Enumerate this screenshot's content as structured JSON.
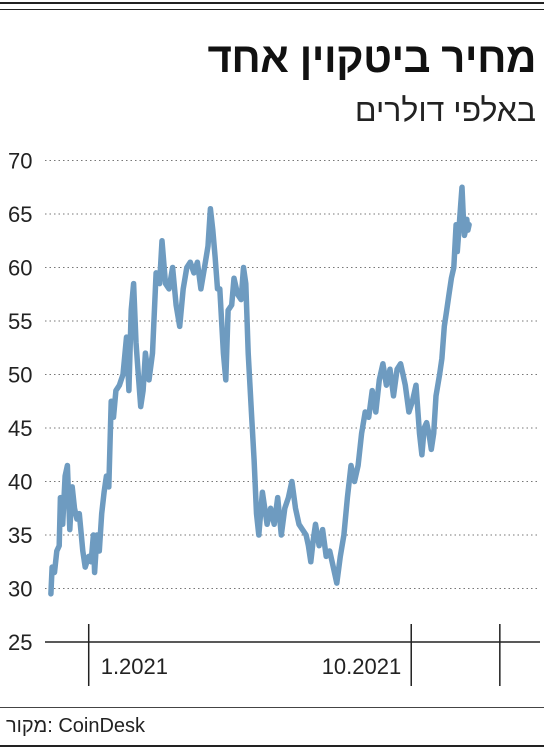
{
  "header": {
    "title": "מחיר ביטקוין אחד",
    "subtitle": "באלפי דולרים"
  },
  "footer": {
    "source_label": "מקור:",
    "source_name": "CoinDesk"
  },
  "chart_data": {
    "type": "line",
    "title": "מחיר ביטקוין אחד",
    "ylabel": "באלפי דולרים",
    "ylim": [
      25,
      70
    ],
    "yticks": [
      25,
      30,
      35,
      40,
      45,
      50,
      55,
      60,
      65,
      70
    ],
    "grid": true,
    "xlim": [
      "2020-11-25",
      "2022-01-18"
    ],
    "xticks": [
      {
        "label": "1.2021",
        "date": "2021-01-01"
      },
      {
        "label": "10.2021",
        "date": "2021-10-01"
      }
    ],
    "line_color": "#6e9bc0",
    "series": [
      {
        "name": "",
        "points": [
          [
            "2020-11-30",
            29.5
          ],
          [
            "2020-12-01",
            32
          ],
          [
            "2020-12-03",
            31.5
          ],
          [
            "2020-12-05",
            33.5
          ],
          [
            "2020-12-07",
            34
          ],
          [
            "2020-12-08",
            38.5
          ],
          [
            "2020-12-10",
            36
          ],
          [
            "2020-12-12",
            40.5
          ],
          [
            "2020-12-14",
            41.5
          ],
          [
            "2020-12-16",
            35.5
          ],
          [
            "2020-12-18",
            39.5
          ],
          [
            "2020-12-20",
            37.5
          ],
          [
            "2020-12-22",
            36.5
          ],
          [
            "2020-12-24",
            37
          ],
          [
            "2020-12-27",
            33.5
          ],
          [
            "2020-12-29",
            32
          ],
          [
            "2021-01-01",
            33
          ],
          [
            "2021-01-03",
            32.5
          ],
          [
            "2021-01-05",
            35
          ],
          [
            "2021-01-06",
            31.5
          ],
          [
            "2021-01-08",
            35
          ],
          [
            "2021-01-10",
            33.5
          ],
          [
            "2021-01-12",
            37
          ],
          [
            "2021-01-14",
            39
          ],
          [
            "2021-01-16",
            40.5
          ],
          [
            "2021-01-18",
            39.5
          ],
          [
            "2021-01-20",
            47.5
          ],
          [
            "2021-01-22",
            46
          ],
          [
            "2021-01-24",
            48.5
          ],
          [
            "2021-01-27",
            49
          ],
          [
            "2021-01-30",
            50
          ],
          [
            "2021-02-02",
            53.5
          ],
          [
            "2021-02-04",
            48.5
          ],
          [
            "2021-02-06",
            56
          ],
          [
            "2021-02-08",
            58.5
          ],
          [
            "2021-02-10",
            53
          ],
          [
            "2021-02-12",
            50
          ],
          [
            "2021-02-14",
            47
          ],
          [
            "2021-02-16",
            48.5
          ],
          [
            "2021-02-18",
            52
          ],
          [
            "2021-02-21",
            49.5
          ],
          [
            "2021-02-24",
            52
          ],
          [
            "2021-02-27",
            59.5
          ],
          [
            "2021-03-02",
            58.5
          ],
          [
            "2021-03-04",
            62.5
          ],
          [
            "2021-03-07",
            58.5
          ],
          [
            "2021-03-10",
            58
          ],
          [
            "2021-03-13",
            60
          ],
          [
            "2021-03-16",
            56.5
          ],
          [
            "2021-03-19",
            54.5
          ],
          [
            "2021-03-22",
            58
          ],
          [
            "2021-03-25",
            60
          ],
          [
            "2021-03-28",
            60.5
          ],
          [
            "2021-03-31",
            59.5
          ],
          [
            "2021-04-03",
            60.5
          ],
          [
            "2021-04-06",
            58
          ],
          [
            "2021-04-09",
            60
          ],
          [
            "2021-04-12",
            62
          ],
          [
            "2021-04-14",
            65.5
          ],
          [
            "2021-04-16",
            63.5
          ],
          [
            "2021-04-18",
            61
          ],
          [
            "2021-04-20",
            58
          ],
          [
            "2021-04-22",
            58
          ],
          [
            "2021-04-25",
            52
          ],
          [
            "2021-04-27",
            49.5
          ],
          [
            "2021-04-29",
            56
          ],
          [
            "2021-05-02",
            56.5
          ],
          [
            "2021-05-04",
            59
          ],
          [
            "2021-05-07",
            57.5
          ],
          [
            "2021-05-10",
            57
          ],
          [
            "2021-05-12",
            60
          ],
          [
            "2021-05-14",
            58.5
          ],
          [
            "2021-05-16",
            52
          ],
          [
            "2021-05-19",
            46
          ],
          [
            "2021-05-21",
            42
          ],
          [
            "2021-05-23",
            37
          ],
          [
            "2021-05-25",
            35
          ],
          [
            "2021-05-28",
            39
          ],
          [
            "2021-06-01",
            36
          ],
          [
            "2021-06-04",
            37.5
          ],
          [
            "2021-06-07",
            36
          ],
          [
            "2021-06-10",
            38.5
          ],
          [
            "2021-06-13",
            35
          ],
          [
            "2021-06-16",
            37.5
          ],
          [
            "2021-06-19",
            38.5
          ],
          [
            "2021-06-22",
            40
          ],
          [
            "2021-06-25",
            37.5
          ],
          [
            "2021-06-28",
            36
          ],
          [
            "2021-07-01",
            35.5
          ],
          [
            "2021-07-04",
            35
          ],
          [
            "2021-07-06",
            34
          ],
          [
            "2021-07-08",
            32.5
          ],
          [
            "2021-07-10",
            34.5
          ],
          [
            "2021-07-12",
            36
          ],
          [
            "2021-07-15",
            34
          ],
          [
            "2021-07-18",
            35.5
          ],
          [
            "2021-07-21",
            33
          ],
          [
            "2021-07-24",
            33.5
          ],
          [
            "2021-07-27",
            32
          ],
          [
            "2021-07-30",
            30.5
          ],
          [
            "2021-08-02",
            33
          ],
          [
            "2021-08-05",
            35
          ],
          [
            "2021-08-08",
            38.5
          ],
          [
            "2021-08-11",
            41.5
          ],
          [
            "2021-08-14",
            40
          ],
          [
            "2021-08-17",
            41.5
          ],
          [
            "2021-08-20",
            44.5
          ],
          [
            "2021-08-23",
            46.5
          ],
          [
            "2021-08-26",
            46
          ],
          [
            "2021-08-29",
            48.5
          ],
          [
            "2021-09-01",
            46.5
          ],
          [
            "2021-09-04",
            49.5
          ],
          [
            "2021-09-07",
            51
          ],
          [
            "2021-09-10",
            49
          ],
          [
            "2021-09-13",
            50.5
          ],
          [
            "2021-09-16",
            48
          ],
          [
            "2021-09-19",
            50.5
          ],
          [
            "2021-09-22",
            51
          ],
          [
            "2021-09-24",
            50
          ],
          [
            "2021-09-26",
            49
          ],
          [
            "2021-09-29",
            46.5
          ],
          [
            "2021-10-02",
            47.5
          ],
          [
            "2021-10-05",
            49
          ],
          [
            "2021-10-08",
            44.5
          ],
          [
            "2021-10-10",
            42.5
          ],
          [
            "2021-10-12",
            45
          ],
          [
            "2021-10-14",
            45.5
          ],
          [
            "2021-10-16",
            44.5
          ],
          [
            "2021-10-18",
            43
          ],
          [
            "2021-10-20",
            44.5
          ],
          [
            "2021-10-22",
            48
          ],
          [
            "2021-10-25",
            50
          ],
          [
            "2021-10-27",
            51.5
          ],
          [
            "2021-10-29",
            54.5
          ],
          [
            "2021-10-31",
            56
          ],
          [
            "2021-11-02",
            57.5
          ],
          [
            "2021-11-04",
            59
          ],
          [
            "2021-11-06",
            60
          ],
          [
            "2021-11-08",
            64
          ],
          [
            "2021-11-09",
            61.5
          ],
          [
            "2021-11-10",
            63
          ],
          [
            "2021-11-12",
            66
          ],
          [
            "2021-11-13",
            67.5
          ],
          [
            "2021-11-14",
            65
          ],
          [
            "2021-11-15",
            63
          ],
          [
            "2021-11-16",
            63.5
          ],
          [
            "2021-11-17",
            64.5
          ],
          [
            "2021-11-18",
            63.5
          ],
          [
            "2021-11-19",
            64
          ]
        ]
      }
    ]
  }
}
